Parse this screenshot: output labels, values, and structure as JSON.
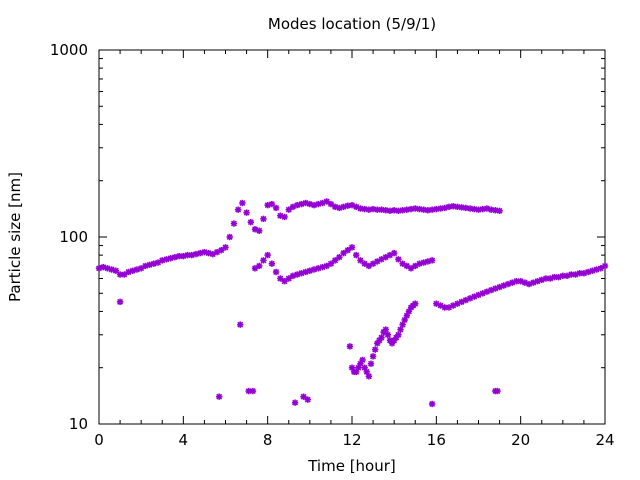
{
  "chart_data": {
    "type": "scatter",
    "title": "Modes location (5/9/1)",
    "xlabel": "Time [hour]",
    "ylabel": "Particle size [nm]",
    "xlim": [
      0,
      24
    ],
    "ylim": [
      10,
      1000
    ],
    "yscale": "log",
    "xticks": [
      "0",
      "4",
      "8",
      "12",
      "16",
      "20",
      "24"
    ],
    "yticks": [
      "10",
      "100",
      "1000"
    ],
    "grid": false,
    "marker": "asterisk",
    "color": "#9400d3",
    "series": [
      {
        "x": [
          0.0,
          0.2,
          0.4,
          0.6,
          0.8,
          1.0,
          1.2,
          1.4,
          1.6,
          1.8,
          2.0,
          2.2,
          2.4,
          2.6,
          2.8,
          3.0,
          3.2,
          3.4,
          3.6,
          3.8,
          4.0,
          4.2,
          4.4,
          4.6,
          4.8,
          5.0,
          5.2,
          5.4,
          5.6,
          5.8,
          6.0,
          6.2,
          6.4,
          6.6,
          6.8,
          7.0,
          7.2,
          7.4,
          7.6,
          7.8,
          8.0,
          8.2,
          8.4,
          8.6,
          8.8,
          9.0,
          9.2,
          9.4,
          9.6,
          9.8,
          10.0,
          10.2,
          10.4,
          10.6,
          10.8,
          11.0,
          11.2,
          11.4,
          11.6,
          11.8,
          12.0,
          12.2,
          12.4,
          12.6,
          12.8,
          13.0,
          13.2,
          13.4,
          13.6,
          13.8,
          14.0,
          14.2,
          14.4,
          14.6,
          14.8,
          15.0,
          15.2,
          15.4,
          15.6,
          15.8,
          16.0,
          16.2,
          16.4,
          16.6,
          16.8,
          17.0,
          17.2,
          17.4,
          17.6,
          17.8,
          18.0,
          18.2,
          18.4,
          18.6,
          18.8,
          19.0
        ],
        "y": [
          68,
          69,
          68,
          67,
          66,
          63,
          63,
          65,
          66,
          67,
          68,
          70,
          71,
          72,
          73,
          75,
          76,
          77,
          78,
          79,
          79,
          80,
          80,
          81,
          82,
          83,
          82,
          81,
          83,
          85,
          88,
          100,
          118,
          140,
          152,
          135,
          120,
          110,
          108,
          125,
          148,
          150,
          143,
          130,
          128,
          140,
          145,
          148,
          150,
          152,
          150,
          148,
          150,
          152,
          155,
          150,
          145,
          143,
          145,
          147,
          148,
          145,
          142,
          141,
          140,
          141,
          140,
          140,
          139,
          138,
          139,
          138,
          139,
          140,
          141,
          142,
          141,
          140,
          139,
          140,
          141,
          142,
          143,
          145,
          146,
          145,
          144,
          143,
          142,
          141,
          140,
          141,
          142,
          140,
          139,
          138
        ],
        "name": ""
      },
      {
        "x": [
          7.4,
          7.6,
          7.8,
          8.0,
          8.2,
          8.4,
          8.6,
          8.8,
          9.0,
          9.2,
          9.4,
          9.6,
          9.8,
          10.0,
          10.2,
          10.4,
          10.6,
          10.8,
          11.0,
          11.2,
          11.4,
          11.6,
          11.8,
          12.0,
          12.2,
          12.4,
          12.6,
          12.8,
          13.0,
          13.2,
          13.4,
          13.6,
          13.8,
          14.0,
          14.2,
          14.4,
          14.6,
          14.8,
          15.0,
          15.2,
          15.4,
          15.6,
          15.8,
          16.0,
          16.2,
          16.4,
          16.6,
          16.8,
          17.0,
          17.2,
          17.4,
          17.6,
          17.8,
          18.0,
          18.2,
          18.4,
          18.6,
          18.8,
          19.0,
          19.2,
          19.4,
          19.6,
          19.8,
          20.0,
          20.2,
          20.4,
          20.6,
          20.8,
          21.0,
          21.2,
          21.4,
          21.6,
          21.8,
          22.0,
          22.2,
          22.4,
          22.6,
          22.8,
          23.0,
          23.2,
          23.4,
          23.6,
          23.8,
          24.0
        ],
        "y": [
          68,
          70,
          75,
          80,
          72,
          65,
          60,
          58,
          60,
          62,
          63,
          64,
          65,
          66,
          67,
          68,
          69,
          70,
          72,
          75,
          78,
          82,
          85,
          88,
          80,
          75,
          72,
          70,
          72,
          74,
          76,
          78,
          80,
          82,
          76,
          72,
          70,
          68,
          70,
          72,
          73,
          74,
          75,
          44,
          43,
          42,
          42,
          43,
          44,
          45,
          46,
          47,
          48,
          49,
          50,
          51,
          52,
          53,
          54,
          55,
          56,
          57,
          58,
          58,
          57,
          56,
          57,
          58,
          59,
          60,
          60,
          61,
          61,
          62,
          62,
          63,
          63,
          64,
          64,
          65,
          66,
          67,
          68,
          70
        ],
        "name": ""
      },
      {
        "x": [
          11.9,
          12.0,
          12.1,
          12.2,
          12.3,
          12.4,
          12.5,
          12.6,
          12.7,
          12.8,
          12.9,
          13.0,
          13.1,
          13.2,
          13.3,
          13.4,
          13.5,
          13.6,
          13.7,
          13.8,
          13.9,
          14.0,
          14.1,
          14.2,
          14.3,
          14.4,
          14.5,
          14.6,
          14.7,
          14.8,
          14.9,
          15.0
        ],
        "y": [
          26,
          20,
          19,
          19,
          20,
          21,
          22,
          20,
          19,
          18,
          21,
          23,
          25,
          27,
          28,
          29,
          31,
          32,
          30,
          28,
          27,
          28,
          29,
          30,
          32,
          34,
          36,
          38,
          40,
          42,
          43,
          44
        ],
        "name": ""
      },
      {
        "x": [
          1.0,
          5.7,
          6.7,
          7.1,
          7.3,
          9.3,
          9.7,
          9.9,
          15.8,
          18.8,
          18.9
        ],
        "y": [
          45,
          14,
          34,
          15,
          15,
          13,
          14,
          13.5,
          12.8,
          15,
          15
        ],
        "name": ""
      }
    ]
  }
}
